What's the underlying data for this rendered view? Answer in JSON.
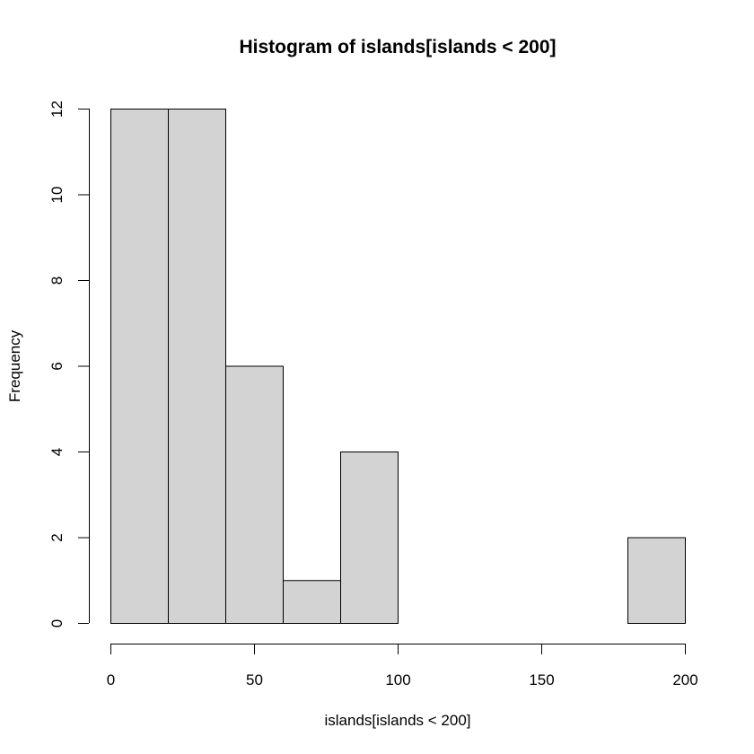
{
  "chart_data": {
    "type": "bar",
    "title": "Histogram of islands[islands < 200]",
    "xlabel": "islands[islands < 200]",
    "ylabel": "Frequency",
    "bin_edges": [
      0,
      20,
      40,
      60,
      80,
      100,
      120,
      140,
      160,
      180,
      200
    ],
    "values": [
      12,
      12,
      6,
      1,
      4,
      0,
      0,
      0,
      0,
      2
    ],
    "xlim": [
      0,
      200
    ],
    "ylim": [
      0,
      12
    ],
    "x_ticks": [
      0,
      50,
      100,
      150,
      200
    ],
    "y_ticks": [
      0,
      2,
      4,
      6,
      8,
      10,
      12
    ],
    "grid": false,
    "bar_color": "#d3d3d3",
    "edge_color": "#000000"
  }
}
